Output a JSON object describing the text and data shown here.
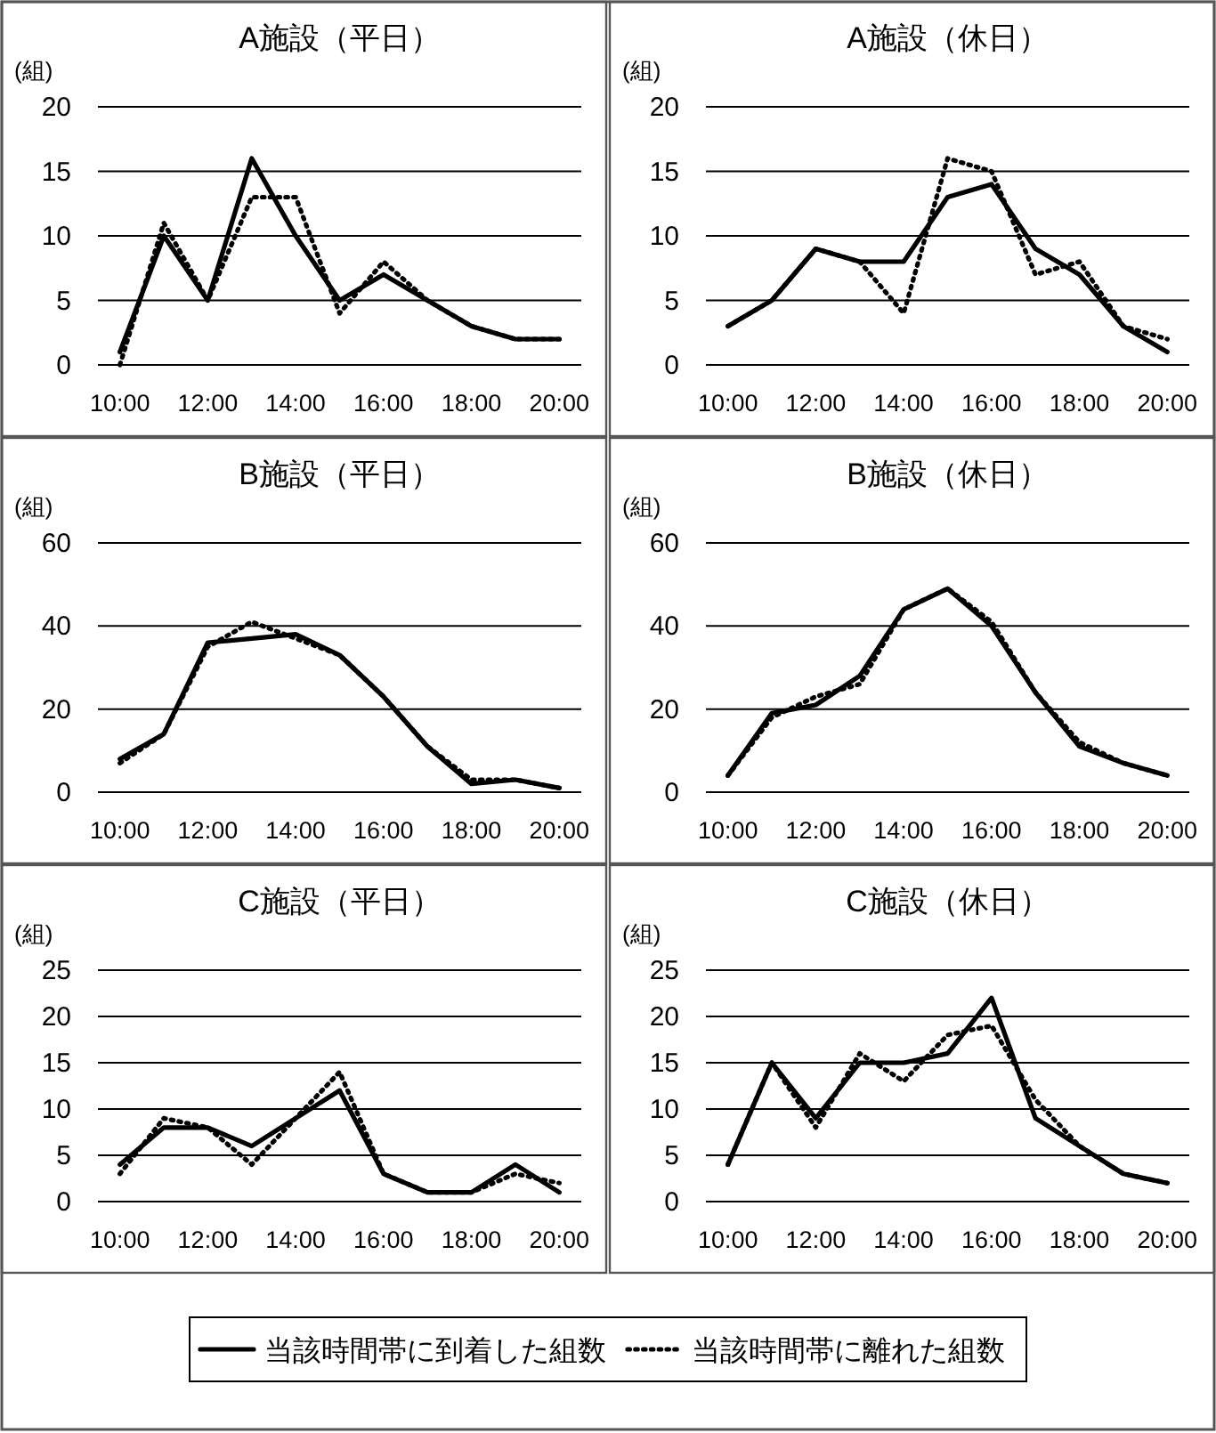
{
  "chart_data": [
    {
      "type": "line",
      "title": "A施設（平日）",
      "ylabel": "(組)",
      "categories": [
        "10:00",
        null,
        "12:00",
        null,
        "14:00",
        null,
        "16:00",
        null,
        "18:00",
        null,
        "20:00"
      ],
      "ylim": [
        0,
        20
      ],
      "yticks": [
        0,
        5,
        10,
        15,
        20
      ],
      "grid": "y",
      "legend": "bottom",
      "series": [
        {
          "name": "当該時間帯に到着した組数",
          "color": "#000000",
          "line_style": "solid",
          "values": [
            1,
            10,
            5,
            16,
            10,
            5,
            7,
            5,
            3,
            2,
            2
          ]
        },
        {
          "name": "当該時間帯に離れた組数",
          "color": "#000000",
          "line_style": "dotted",
          "values": [
            0,
            11,
            5,
            13,
            13,
            4,
            8,
            5,
            3,
            2,
            2
          ]
        }
      ]
    },
    {
      "type": "line",
      "title": "A施設（休日）",
      "ylabel": "(組)",
      "categories": [
        "10:00",
        null,
        "12:00",
        null,
        "14:00",
        null,
        "16:00",
        null,
        "18:00",
        null,
        "20:00"
      ],
      "ylim": [
        0,
        20
      ],
      "yticks": [
        0,
        5,
        10,
        15,
        20
      ],
      "grid": "y",
      "series": [
        {
          "color": "#000000",
          "line_style": "solid",
          "values": [
            3,
            5,
            9,
            8,
            8,
            13,
            14,
            9,
            7,
            3,
            1
          ]
        },
        {
          "color": "#000000",
          "line_style": "dotted",
          "values": [
            3,
            5,
            9,
            8,
            4,
            16,
            15,
            7,
            8,
            3,
            2
          ]
        }
      ]
    },
    {
      "type": "line",
      "title": "B施設（平日）",
      "ylabel": "(組)",
      "categories": [
        "10:00",
        null,
        "12:00",
        null,
        "14:00",
        null,
        "16:00",
        null,
        "18:00",
        null,
        "20:00"
      ],
      "ylim": [
        0,
        60
      ],
      "yticks": [
        0,
        20,
        40,
        60
      ],
      "grid": "y",
      "series": [
        {
          "color": "#000000",
          "line_style": "solid",
          "values": [
            8,
            14,
            36,
            37,
            38,
            33,
            23,
            11,
            2,
            3,
            1
          ]
        },
        {
          "color": "#000000",
          "line_style": "dotted",
          "values": [
            7,
            14,
            35,
            41,
            37,
            33,
            23,
            11,
            3,
            3,
            1
          ]
        }
      ]
    },
    {
      "type": "line",
      "title": "B施設（休日）",
      "ylabel": "(組)",
      "categories": [
        "10:00",
        null,
        "12:00",
        null,
        "14:00",
        null,
        "16:00",
        null,
        "18:00",
        null,
        "20:00"
      ],
      "ylim": [
        0,
        60
      ],
      "yticks": [
        0,
        20,
        40,
        60
      ],
      "grid": "y",
      "series": [
        {
          "color": "#000000",
          "line_style": "solid",
          "values": [
            4,
            19,
            21,
            28,
            44,
            49,
            40,
            24,
            11,
            7,
            4
          ]
        },
        {
          "color": "#000000",
          "line_style": "dotted",
          "values": [
            4,
            18,
            23,
            26,
            44,
            49,
            41,
            24,
            12,
            7,
            4
          ]
        }
      ]
    },
    {
      "type": "line",
      "title": "C施設（平日）",
      "ylabel": "(組)",
      "categories": [
        "10:00",
        null,
        "12:00",
        null,
        "14:00",
        null,
        "16:00",
        null,
        "18:00",
        null,
        "20:00"
      ],
      "ylim": [
        0,
        25
      ],
      "yticks": [
        0,
        5,
        10,
        15,
        20,
        25
      ],
      "grid": "y",
      "series": [
        {
          "color": "#000000",
          "line_style": "solid",
          "values": [
            4,
            8,
            8,
            6,
            9,
            12,
            3,
            1,
            1,
            4,
            1
          ]
        },
        {
          "color": "#000000",
          "line_style": "dotted",
          "values": [
            3,
            9,
            8,
            4,
            9,
            14,
            3,
            1,
            1,
            3,
            2
          ]
        }
      ]
    },
    {
      "type": "line",
      "title": "C施設（休日）",
      "ylabel": "(組)",
      "categories": [
        "10:00",
        null,
        "12:00",
        null,
        "14:00",
        null,
        "16:00",
        null,
        "18:00",
        null,
        "20:00"
      ],
      "ylim": [
        0,
        25
      ],
      "yticks": [
        0,
        5,
        10,
        15,
        20,
        25
      ],
      "grid": "y",
      "series": [
        {
          "color": "#000000",
          "line_style": "solid",
          "values": [
            4,
            15,
            9,
            15,
            15,
            16,
            22,
            9,
            6,
            3,
            2
          ]
        },
        {
          "color": "#000000",
          "line_style": "dotted",
          "values": [
            4,
            15,
            8,
            16,
            13,
            18,
            19,
            11,
            6,
            3,
            2
          ]
        }
      ]
    }
  ]
}
